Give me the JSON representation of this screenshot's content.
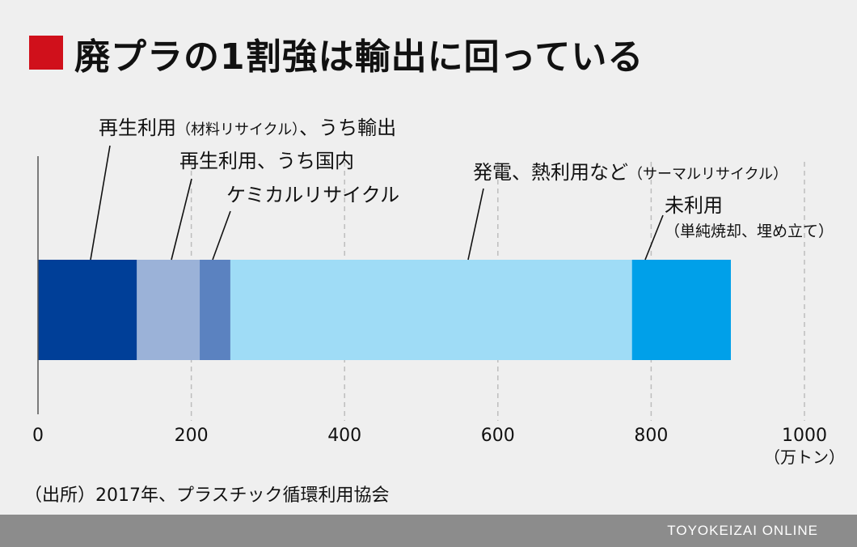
{
  "title": "廃プラの1割強は輸出に回っている",
  "source": "（出所）2017年、プラスチック循環利用協会",
  "brand": "TOYOKEIZAI ONLINE",
  "colors": {
    "title_marker": "#d0101b",
    "footer": "#8c8c8c",
    "axis": "#555555",
    "grid": "#bdbdbd",
    "background": "#efefef"
  },
  "chart_data": {
    "type": "bar",
    "orientation": "horizontal-stacked",
    "title": "廃プラの1割強は輸出に回っている",
    "unit": "（万トン）",
    "xlim": [
      0,
      1000
    ],
    "xticks": [
      "0",
      "200",
      "400",
      "600",
      "800",
      "1000"
    ],
    "grid": "vertical-dashed",
    "series": [
      {
        "name": "再生利用（材料リサイクル）、うち輸出",
        "value": 129,
        "color": "#003f98"
      },
      {
        "name": "再生利用、うち国内",
        "value": 82,
        "color": "#9bb2d8"
      },
      {
        "name": "ケミカルリサイクル",
        "value": 40,
        "color": "#5b82c0"
      },
      {
        "name": "発電、熱利用など（サーマルリサイクル）",
        "value": 524,
        "color": "#9fdcf6"
      },
      {
        "name": "未利用（単純焼却、埋め立て）",
        "value": 129,
        "color": "#00a0e9"
      }
    ],
    "annotations": [
      {
        "main": "再生利用",
        "sub": "（材料リサイクル）",
        "tail": "、うち輸出"
      },
      {
        "main": "再生利用、うち国内",
        "sub": "",
        "tail": ""
      },
      {
        "main": "ケミカルリサイクル",
        "sub": "",
        "tail": ""
      },
      {
        "main": "発電、熱利用など",
        "sub": "（サーマルリサイクル）",
        "tail": ""
      },
      {
        "main": "未利用",
        "sub": "（単純焼却、埋め立て）",
        "tail": ""
      }
    ]
  }
}
